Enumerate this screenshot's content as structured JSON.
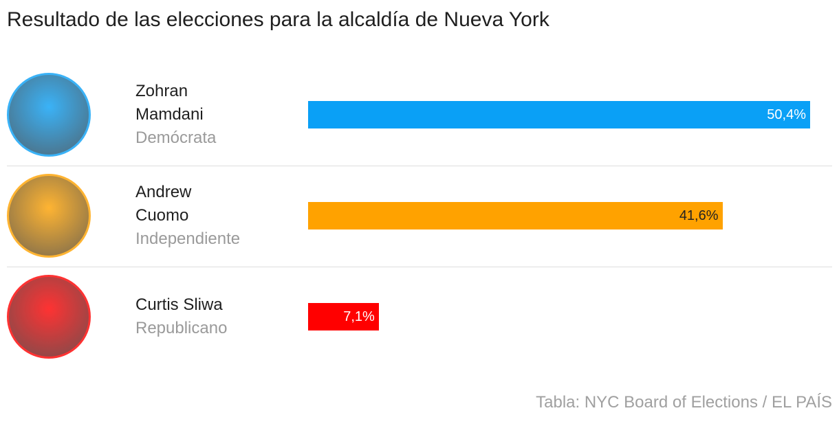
{
  "chart_data": {
    "type": "bar",
    "title": "Resultado de las elecciones para la alcaldía de Nueva York",
    "categories": [
      "Zohran Mamdani",
      "Andrew Cuomo",
      "Curtis Sliwa"
    ],
    "parties": [
      "Demócrata",
      "Independiente",
      "Republicano"
    ],
    "values": [
      50.4,
      41.6,
      7.1
    ],
    "value_labels": [
      "50,4%",
      "41,6%",
      "7,1%"
    ],
    "colors": [
      "#0aa0f6",
      "#ffa200",
      "#ff0000"
    ],
    "source": "Tabla: NYC Board of Elections / EL PAÍS"
  }
}
